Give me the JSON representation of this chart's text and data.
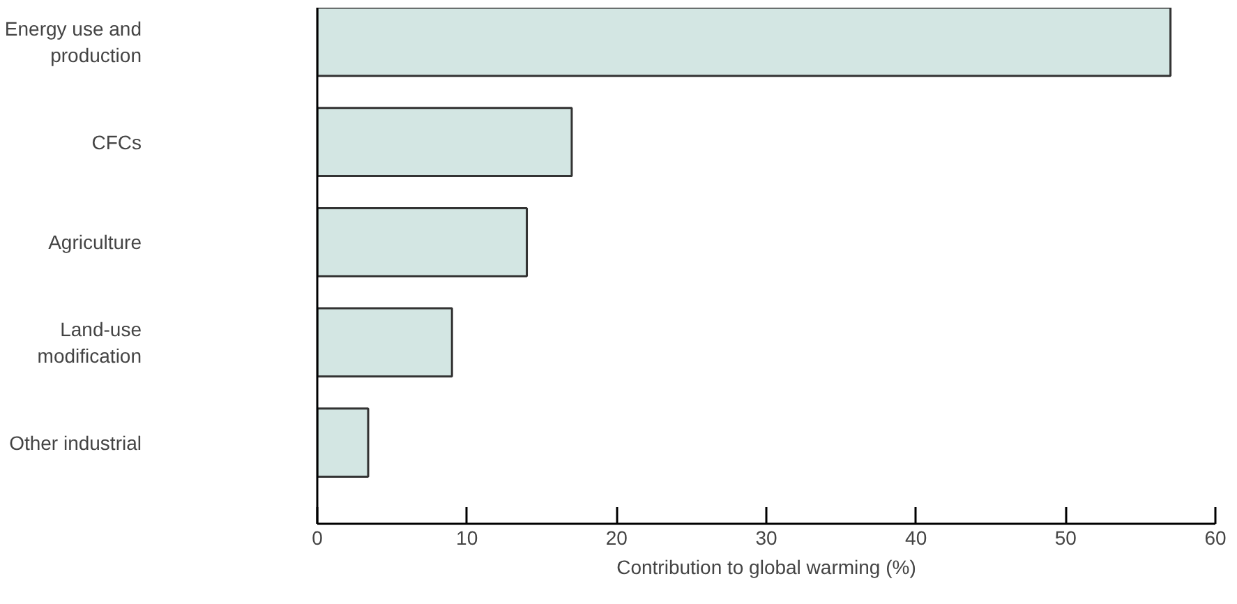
{
  "chart_data": {
    "type": "bar",
    "orientation": "horizontal",
    "xlabel": "Contribution to global warming (%)",
    "categories": [
      "Energy use and\nproduction",
      "CFCs",
      "Agriculture",
      "Land-use\nmodification",
      "Other industrial"
    ],
    "values": [
      57,
      17,
      14,
      9,
      3.4
    ],
    "color": "#d3e6e3",
    "xlim": [
      0,
      60
    ],
    "xticks": [
      0,
      10,
      20,
      30,
      40,
      50,
      60
    ],
    "grid": false
  }
}
